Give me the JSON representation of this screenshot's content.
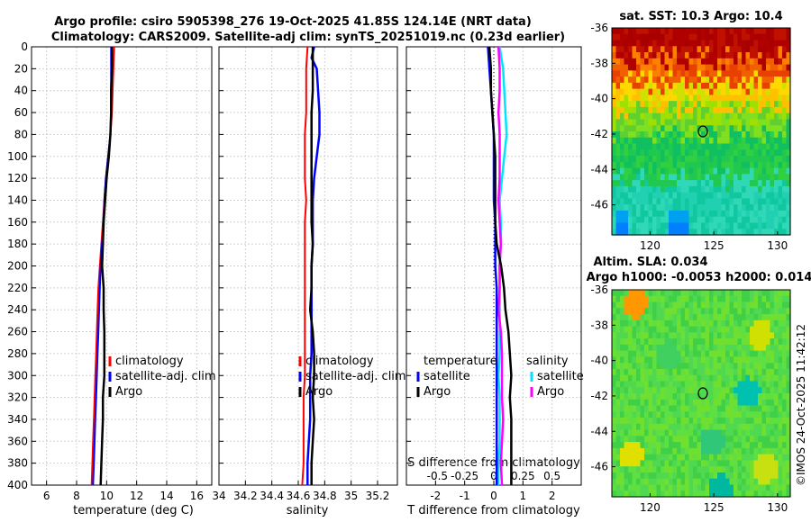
{
  "figure": {
    "title_line1": "Argo profile: csiro 5905398_276 19-Oct-2025 41.85S 124.14E (NRT data)",
    "title_line2": "Climatology: CARS2009. Satellite-adj clim: synTS_20251019.nc (0.23d earlier)",
    "credit": "©IMOS 24-Oct-2025 11:42:12",
    "colors": {
      "climatology": "#ff0000",
      "satellite": "#0000ff",
      "argo": "#000000",
      "sal_satellite": "#00e5ff",
      "sal_satellite_diff": "#ff00ff",
      "grid": "#d0d0d0"
    }
  },
  "chart_data": [
    {
      "id": "temperature",
      "type": "line",
      "xlabel": "temperature (deg C)",
      "ylabel": "",
      "xlim": [
        5,
        17
      ],
      "ylim": [
        0,
        400
      ],
      "xticks": [
        "6",
        "8",
        "10",
        "12",
        "14",
        "16"
      ],
      "yticks": [
        "0",
        "20",
        "40",
        "60",
        "80",
        "100",
        "120",
        "140",
        "160",
        "180",
        "200",
        "220",
        "240",
        "260",
        "280",
        "300",
        "320",
        "340",
        "360",
        "380",
        "400"
      ],
      "legend": [
        "climatology",
        "satellite-adj. clim",
        "Argo"
      ],
      "series": [
        {
          "name": "climatology",
          "depth": [
            0,
            20,
            40,
            60,
            80,
            100,
            120,
            140,
            160,
            180,
            200,
            220,
            240,
            260,
            280,
            300,
            320,
            340,
            360,
            380,
            400
          ],
          "values": [
            10.5,
            10.45,
            10.4,
            10.35,
            10.25,
            10.1,
            9.95,
            9.85,
            9.75,
            9.65,
            9.55,
            9.45,
            9.4,
            9.35,
            9.3,
            9.25,
            9.2,
            9.15,
            9.1,
            9.05,
            9.0
          ]
        },
        {
          "name": "satellite-adj. clim",
          "depth": [
            0,
            20,
            40,
            60,
            80,
            100,
            120,
            140,
            160,
            180,
            200,
            220,
            240,
            260,
            280,
            300,
            320,
            340,
            360,
            380,
            400
          ],
          "values": [
            10.3,
            10.3,
            10.3,
            10.3,
            10.25,
            10.1,
            9.95,
            9.85,
            9.8,
            9.7,
            9.6,
            9.55,
            9.5,
            9.45,
            9.4,
            9.35,
            9.3,
            9.25,
            9.2,
            9.15,
            9.1
          ]
        },
        {
          "name": "Argo",
          "depth": [
            0,
            20,
            40,
            60,
            80,
            100,
            120,
            140,
            160,
            180,
            200,
            220,
            240,
            260,
            280,
            300,
            320,
            340,
            360,
            380,
            400
          ],
          "values": [
            10.35,
            10.35,
            10.3,
            10.3,
            10.25,
            10.15,
            10.0,
            9.9,
            9.8,
            9.75,
            9.7,
            9.8,
            9.8,
            9.85,
            9.85,
            9.85,
            9.75,
            9.75,
            9.7,
            9.65,
            9.6
          ]
        }
      ]
    },
    {
      "id": "salinity",
      "type": "line",
      "xlabel": "salinity",
      "ylabel": "",
      "xlim": [
        34.0,
        35.35
      ],
      "ylim": [
        0,
        400
      ],
      "xticks": [
        "34",
        "34.2",
        "34.4",
        "34.6",
        "34.8",
        "35",
        "35.2"
      ],
      "legend": [
        "climatology",
        "satellite-adj. clim",
        "Argo"
      ],
      "series": [
        {
          "name": "climatology",
          "depth": [
            0,
            20,
            40,
            60,
            80,
            100,
            120,
            140,
            160,
            180,
            200,
            220,
            240,
            260,
            280,
            300,
            320,
            340,
            360,
            380,
            400
          ],
          "values": [
            34.67,
            34.66,
            34.66,
            34.66,
            34.65,
            34.65,
            34.65,
            34.66,
            34.65,
            34.65,
            34.65,
            34.65,
            34.65,
            34.65,
            34.65,
            34.65,
            34.64,
            34.64,
            34.64,
            34.64,
            34.63
          ]
        },
        {
          "name": "satellite-adj. clim",
          "depth": [
            0,
            10,
            20,
            40,
            60,
            80,
            100,
            120,
            140,
            160,
            180,
            200,
            220,
            240,
            260,
            280,
            300,
            320,
            340,
            360,
            380,
            400
          ],
          "values": [
            34.72,
            34.7,
            34.74,
            34.75,
            34.76,
            34.76,
            34.74,
            34.72,
            34.71,
            34.71,
            34.71,
            34.7,
            34.7,
            34.7,
            34.7,
            34.7,
            34.69,
            34.69,
            34.69,
            34.68,
            34.67,
            34.67
          ]
        },
        {
          "name": "Argo",
          "depth": [
            0,
            20,
            40,
            60,
            80,
            100,
            120,
            140,
            160,
            180,
            200,
            220,
            240,
            260,
            280,
            300,
            320,
            340,
            360,
            380,
            400
          ],
          "values": [
            34.71,
            34.71,
            34.71,
            34.7,
            34.7,
            34.7,
            34.7,
            34.7,
            34.7,
            34.71,
            34.7,
            34.7,
            34.69,
            34.71,
            34.72,
            34.72,
            34.71,
            34.72,
            34.71,
            34.7,
            34.7
          ]
        }
      ]
    },
    {
      "id": "difference",
      "type": "line",
      "xlabel": "T difference from climatology",
      "xlabel_top": "S difference from climatology",
      "xlim": [
        -3,
        3
      ],
      "ylim": [
        0,
        400
      ],
      "xticks": [
        "-2",
        "-1",
        "0",
        "1",
        "2"
      ],
      "xticks_s": [
        "-0.5",
        "-0.25",
        "0",
        "0.25",
        "0.5"
      ],
      "legend_t_title": "temperature",
      "legend_s_title": "salinity",
      "legend": [
        "satellite",
        "Argo"
      ],
      "series": [
        {
          "name": "T satellite",
          "depth": [
            0,
            20,
            40,
            60,
            80,
            100,
            120,
            140,
            160,
            180,
            200,
            220,
            240,
            260,
            280,
            300,
            320,
            340,
            360,
            380,
            400
          ],
          "values": [
            -0.2,
            -0.15,
            -0.1,
            -0.05,
            0.0,
            0.0,
            0.0,
            0.0,
            0.05,
            0.05,
            0.05,
            0.1,
            0.1,
            0.1,
            0.1,
            0.1,
            0.1,
            0.1,
            0.1,
            0.1,
            0.1
          ]
        },
        {
          "name": "T Argo",
          "depth": [
            0,
            20,
            40,
            60,
            80,
            100,
            120,
            140,
            160,
            180,
            200,
            220,
            240,
            260,
            280,
            300,
            320,
            340,
            360,
            380,
            400
          ],
          "values": [
            -0.15,
            -0.1,
            -0.1,
            -0.05,
            0.0,
            0.05,
            0.05,
            0.05,
            0.05,
            0.1,
            0.25,
            0.35,
            0.4,
            0.5,
            0.55,
            0.6,
            0.55,
            0.6,
            0.6,
            0.6,
            0.6
          ]
        },
        {
          "name": "S satellite",
          "depth": [
            0,
            20,
            40,
            60,
            80,
            100,
            120,
            140,
            160,
            180,
            200,
            220,
            240,
            260,
            280,
            300,
            320,
            340,
            360,
            380,
            400
          ],
          "values": [
            0.05,
            0.08,
            0.09,
            0.1,
            0.11,
            0.09,
            0.07,
            0.05,
            0.06,
            0.06,
            0.05,
            0.05,
            0.05,
            0.05,
            0.05,
            0.04,
            0.05,
            0.05,
            0.05,
            0.04,
            0.04
          ]
        },
        {
          "name": "S Argo",
          "depth": [
            0,
            20,
            40,
            60,
            80,
            100,
            120,
            140,
            160,
            180,
            200,
            220,
            240,
            260,
            280,
            300,
            320,
            340,
            360,
            380,
            400
          ],
          "values": [
            0.04,
            0.05,
            0.05,
            0.04,
            0.05,
            0.05,
            0.05,
            0.04,
            0.05,
            0.06,
            0.05,
            0.05,
            0.04,
            0.06,
            0.07,
            0.07,
            0.07,
            0.08,
            0.07,
            0.06,
            0.07
          ]
        }
      ]
    },
    {
      "id": "sst_map",
      "type": "heatmap",
      "title": "sat. SST: 10.3  Argo: 10.4",
      "xlim": [
        117,
        131
      ],
      "ylim": [
        -47.7,
        -36
      ],
      "xticks": [
        "120",
        "125",
        "130"
      ],
      "yticks": [
        "-36",
        "-38",
        "-40",
        "-42",
        "-44",
        "-46"
      ],
      "marker": {
        "lon": 124.14,
        "lat": -41.85
      }
    },
    {
      "id": "sla_map",
      "type": "heatmap",
      "title_line1": "Altim. SLA: 0.034",
      "title_line2": "Argo h1000: -0.0053 h2000: 0.014",
      "xlim": [
        117,
        131
      ],
      "ylim": [
        -47.7,
        -36
      ],
      "xticks": [
        "120",
        "125",
        "130"
      ],
      "yticks": [
        "-36",
        "-38",
        "-40",
        "-42",
        "-44",
        "-46"
      ],
      "marker": {
        "lon": 124.14,
        "lat": -41.85
      }
    }
  ]
}
